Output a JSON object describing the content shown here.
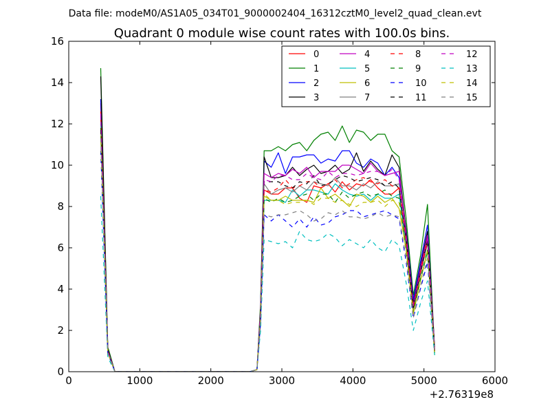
{
  "figure": {
    "suptitle": "Data file: modeM0/AS1A05_034T01_9000002404_16312cztM0_level2_quad_clean.evt"
  },
  "chart_data": {
    "type": "line",
    "title": "Quadrant 0 module wise count rates with 100.0s bins.",
    "xlabel": "",
    "ylabel": "",
    "x_offset_label": "+2.76319e8",
    "xlim": [
      0,
      6000
    ],
    "ylim": [
      0,
      16
    ],
    "xticks": [
      0,
      1000,
      2000,
      3000,
      4000,
      5000,
      6000
    ],
    "yticks": [
      0,
      2,
      4,
      6,
      8,
      10,
      12,
      14,
      16
    ],
    "grid": false,
    "legend_position": "top-right",
    "legend_columns": 4,
    "x": [
      450,
      550,
      650,
      750,
      850,
      950,
      1050,
      1150,
      1250,
      1350,
      1450,
      1550,
      1650,
      1750,
      1850,
      1950,
      2050,
      2150,
      2250,
      2350,
      2450,
      2550,
      2650,
      2700,
      2750,
      2850,
      2950,
      3050,
      3150,
      3250,
      3350,
      3450,
      3550,
      3650,
      3750,
      3850,
      3950,
      4050,
      4150,
      4250,
      4350,
      4450,
      4550,
      4650,
      4750,
      4850,
      4950,
      5050,
      5150
    ],
    "series": [
      {
        "name": "0",
        "color": "#ff0000",
        "dash": "solid",
        "values": [
          13.0,
          1.1,
          0,
          0,
          0,
          0,
          0,
          0,
          0,
          0,
          0,
          0,
          0,
          0,
          0,
          0,
          0,
          0,
          0,
          0,
          0,
          0,
          0.1,
          2.8,
          8.8,
          8.6,
          8.6,
          8.9,
          8.9,
          8.4,
          8.2,
          9.0,
          8.9,
          9.1,
          8.7,
          9.2,
          8.8,
          9.1,
          9.0,
          9.3,
          8.9,
          8.6,
          8.6,
          8.9,
          6.2,
          3.0,
          4.9,
          6.4,
          1.1
        ]
      },
      {
        "name": "1",
        "color": "#008000",
        "dash": "solid",
        "values": [
          14.7,
          1.2,
          0,
          0,
          0,
          0,
          0,
          0,
          0,
          0,
          0,
          0,
          0,
          0,
          0,
          0,
          0,
          0,
          0,
          0,
          0,
          0,
          0.1,
          3.3,
          10.7,
          10.7,
          10.9,
          10.7,
          11.0,
          11.1,
          10.7,
          11.2,
          11.5,
          11.6,
          11.2,
          11.9,
          11.1,
          11.7,
          11.6,
          11.2,
          11.5,
          11.5,
          10.7,
          10.4,
          7.4,
          3.7,
          5.6,
          8.1,
          1.0
        ]
      },
      {
        "name": "2",
        "color": "#0000ff",
        "dash": "solid",
        "values": [
          13.2,
          1.0,
          0,
          0,
          0,
          0,
          0,
          0,
          0,
          0,
          0,
          0,
          0,
          0,
          0,
          0,
          0,
          0,
          0,
          0,
          0,
          0,
          0.1,
          3.0,
          10.2,
          9.9,
          10.6,
          9.6,
          10.4,
          10.4,
          10.5,
          10.5,
          10.1,
          10.3,
          10.2,
          10.7,
          10.7,
          10.1,
          9.9,
          10.3,
          10.1,
          9.5,
          9.9,
          9.4,
          6.9,
          3.5,
          5.3,
          7.1,
          1.0
        ]
      },
      {
        "name": "3",
        "color": "#000000",
        "dash": "solid",
        "values": [
          14.3,
          1.1,
          0,
          0,
          0,
          0,
          0,
          0,
          0,
          0,
          0,
          0,
          0,
          0,
          0,
          0,
          0,
          0,
          0,
          0,
          0,
          0,
          0.1,
          3.1,
          10.4,
          9.4,
          9.4,
          9.5,
          9.9,
          9.5,
          9.8,
          10.0,
          9.6,
          9.7,
          10.0,
          9.6,
          9.8,
          10.6,
          9.7,
          10.2,
          9.8,
          9.5,
          10.5,
          9.9,
          6.8,
          3.3,
          5.1,
          6.8,
          1.2
        ]
      },
      {
        "name": "4",
        "color": "#c000c0",
        "dash": "solid",
        "values": [
          12.4,
          1.0,
          0,
          0,
          0,
          0,
          0,
          0,
          0,
          0,
          0,
          0,
          0,
          0,
          0,
          0,
          0,
          0,
          0,
          0,
          0,
          0,
          0.1,
          2.9,
          9.6,
          9.4,
          9.6,
          9.5,
          9.8,
          9.6,
          9.9,
          9.4,
          9.7,
          9.7,
          9.7,
          10.0,
          10.0,
          9.8,
          9.6,
          10.1,
          9.7,
          9.5,
          9.6,
          9.7,
          6.6,
          3.2,
          5.0,
          6.6,
          1.1
        ]
      },
      {
        "name": "5",
        "color": "#00bfbf",
        "dash": "solid",
        "values": [
          12.0,
          1.0,
          0,
          0,
          0,
          0,
          0,
          0,
          0,
          0,
          0,
          0,
          0,
          0,
          0,
          0,
          0,
          0,
          0,
          0,
          0,
          0,
          0.1,
          2.6,
          8.3,
          8.3,
          8.3,
          8.2,
          8.8,
          8.5,
          8.8,
          8.8,
          8.7,
          8.6,
          9.1,
          8.8,
          8.6,
          8.5,
          8.6,
          8.3,
          8.6,
          8.4,
          8.4,
          8.6,
          5.9,
          2.9,
          4.4,
          5.8,
          1.0
        ]
      },
      {
        "name": "6",
        "color": "#bfbf00",
        "dash": "solid",
        "values": [
          11.6,
          0.9,
          0,
          0,
          0,
          0,
          0,
          0,
          0,
          0,
          0,
          0,
          0,
          0,
          0,
          0,
          0,
          0,
          0,
          0,
          0,
          0,
          0.1,
          2.6,
          8.5,
          8.3,
          8.3,
          8.5,
          8.3,
          8.3,
          8.3,
          8.2,
          8.9,
          8.4,
          8.6,
          8.3,
          8.0,
          8.6,
          8.5,
          8.2,
          8.5,
          8.2,
          8.4,
          7.9,
          5.9,
          2.8,
          4.4,
          5.9,
          0.8
        ]
      },
      {
        "name": "7",
        "color": "#808080",
        "dash": "solid",
        "values": [
          12.2,
          1.0,
          0,
          0,
          0,
          0,
          0,
          0,
          0,
          0,
          0,
          0,
          0,
          0,
          0,
          0,
          0,
          0,
          0,
          0,
          0,
          0,
          0.1,
          2.8,
          9.1,
          8.6,
          8.8,
          8.9,
          8.7,
          9.0,
          8.8,
          9.2,
          9.1,
          9.0,
          9.4,
          9.0,
          9.0,
          8.8,
          9.1,
          8.9,
          9.2,
          9.0,
          9.0,
          9.1,
          6.2,
          3.0,
          4.7,
          6.2,
          1.0
        ]
      },
      {
        "name": "8",
        "color": "#ff0000",
        "dash": "dashed",
        "values": [
          12.6,
          1.0,
          0,
          0,
          0,
          0,
          0,
          0,
          0,
          0,
          0,
          0,
          0,
          0,
          0,
          0,
          0,
          0,
          0,
          0,
          0,
          0,
          0.1,
          2.7,
          8.8,
          8.7,
          8.9,
          9.3,
          8.9,
          9.0,
          9.2,
          9.2,
          8.9,
          9.1,
          9.3,
          8.9,
          9.1,
          9.3,
          9.4,
          9.2,
          9.1,
          9.3,
          9.0,
          8.9,
          6.3,
          3.1,
          4.8,
          6.3,
          1.0
        ]
      },
      {
        "name": "9",
        "color": "#008000",
        "dash": "dashed",
        "values": [
          11.8,
          0.9,
          0,
          0,
          0,
          0,
          0,
          0,
          0,
          0,
          0,
          0,
          0,
          0,
          0,
          0,
          0,
          0,
          0,
          0,
          0,
          0,
          0.1,
          2.6,
          8.4,
          8.2,
          8.4,
          8.2,
          8.3,
          8.5,
          8.6,
          8.3,
          8.6,
          8.6,
          8.2,
          8.7,
          8.4,
          8.6,
          8.7,
          8.5,
          8.6,
          8.8,
          8.5,
          8.4,
          5.9,
          2.9,
          4.5,
          5.9,
          0.9
        ]
      },
      {
        "name": "10",
        "color": "#0000ff",
        "dash": "dashed",
        "values": [
          10.7,
          0.9,
          0,
          0,
          0,
          0,
          0,
          0,
          0,
          0,
          0,
          0,
          0,
          0,
          0,
          0,
          0,
          0,
          0,
          0,
          0,
          0,
          0.1,
          2.3,
          7.6,
          7.3,
          7.6,
          7.3,
          7.0,
          7.4,
          7.0,
          7.5,
          7.1,
          7.2,
          7.5,
          7.6,
          7.8,
          7.8,
          7.5,
          7.6,
          7.7,
          7.8,
          7.6,
          7.4,
          5.3,
          2.6,
          4.0,
          5.3,
          0.9
        ]
      },
      {
        "name": "11",
        "color": "#000000",
        "dash": "dashed",
        "values": [
          11.7,
          1.0,
          0,
          0,
          0,
          0,
          0,
          0,
          0,
          0,
          0,
          0,
          0,
          0,
          0,
          0,
          0,
          0,
          0,
          0,
          0,
          0,
          0.1,
          2.8,
          9.2,
          9.2,
          9.2,
          9.0,
          8.9,
          9.2,
          9.1,
          9.5,
          9.0,
          9.1,
          9.3,
          9.5,
          9.4,
          9.2,
          9.3,
          9.4,
          9.3,
          9.0,
          9.2,
          8.9,
          6.4,
          3.1,
          4.8,
          6.4,
          1.0
        ]
      },
      {
        "name": "12",
        "color": "#c000c0",
        "dash": "dashed",
        "values": [
          12.5,
          1.0,
          0,
          0,
          0,
          0,
          0,
          0,
          0,
          0,
          0,
          0,
          0,
          0,
          0,
          0,
          0,
          0,
          0,
          0,
          0,
          0,
          0.1,
          2.9,
          9.3,
          9.2,
          9.5,
          9.5,
          9.3,
          9.3,
          9.6,
          9.4,
          9.3,
          9.7,
          9.4,
          9.6,
          9.6,
          9.5,
          9.6,
          9.7,
          9.7,
          9.5,
          9.8,
          9.3,
          6.5,
          3.2,
          5.0,
          6.5,
          1.0
        ]
      },
      {
        "name": "13",
        "color": "#00bfbf",
        "dash": "dashed",
        "values": [
          8.5,
          0.7,
          0,
          0,
          0,
          0,
          0,
          0,
          0,
          0,
          0,
          0,
          0,
          0,
          0,
          0,
          0,
          0,
          0,
          0,
          0,
          0,
          0.1,
          2.0,
          6.4,
          6.3,
          6.2,
          6.3,
          6.0,
          6.8,
          6.4,
          6.3,
          6.4,
          6.7,
          6.5,
          6.1,
          6.4,
          6.2,
          6.0,
          6.4,
          6.0,
          5.8,
          6.4,
          6.1,
          4.3,
          2.0,
          3.3,
          4.4,
          0.8
        ]
      },
      {
        "name": "14",
        "color": "#bfbf00",
        "dash": "dashed",
        "values": [
          11.2,
          0.9,
          0,
          0,
          0,
          0,
          0,
          0,
          0,
          0,
          0,
          0,
          0,
          0,
          0,
          0,
          0,
          0,
          0,
          0,
          0,
          0,
          0.1,
          2.6,
          8.6,
          8.3,
          8.3,
          8.1,
          8.2,
          8.2,
          8.3,
          8.1,
          8.4,
          8.4,
          8.2,
          8.3,
          8.1,
          8.0,
          8.2,
          8.2,
          8.3,
          8.0,
          8.3,
          8.2,
          5.8,
          2.8,
          4.4,
          5.8,
          0.9
        ]
      },
      {
        "name": "15",
        "color": "#808080",
        "dash": "dashed",
        "values": [
          11.3,
          0.9,
          0,
          0,
          0,
          0,
          0,
          0,
          0,
          0,
          0,
          0,
          0,
          0,
          0,
          0,
          0,
          0,
          0,
          0,
          0,
          0,
          0.1,
          2.5,
          7.6,
          7.5,
          7.6,
          7.6,
          7.7,
          7.8,
          7.6,
          7.3,
          7.4,
          7.7,
          7.6,
          7.8,
          7.5,
          7.5,
          7.4,
          7.5,
          7.7,
          7.5,
          7.6,
          7.5,
          5.5,
          2.6,
          4.1,
          5.5,
          0.9
        ]
      }
    ]
  }
}
